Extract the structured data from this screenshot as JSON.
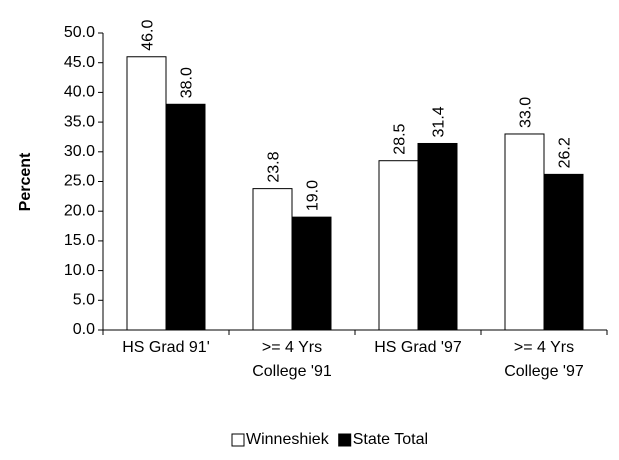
{
  "chart_data": {
    "type": "bar",
    "y_label": "Percent",
    "categories": [
      [
        "HS Grad 91'"
      ],
      [
        ">= 4 Yrs",
        "College '91"
      ],
      [
        "HS Grad '97"
      ],
      [
        ">= 4 Yrs",
        "College '97"
      ]
    ],
    "series": [
      {
        "name": "Winneshiek",
        "color": "#ffffff",
        "values": [
          46.0,
          23.8,
          28.5,
          33.0
        ],
        "value_labels": [
          "46.0",
          "23.8",
          "28.5",
          "33.0"
        ]
      },
      {
        "name": "State Total",
        "color": "#000000",
        "values": [
          38.0,
          19.0,
          31.4,
          26.2
        ],
        "value_labels": [
          "38.0",
          "19.0",
          "31.4",
          "26.2"
        ]
      }
    ],
    "ylim": [
      0,
      50
    ],
    "yticks": [
      {
        "value": 0,
        "label": "0.0"
      },
      {
        "value": 5,
        "label": "5.0"
      },
      {
        "value": 10,
        "label": "10.0"
      },
      {
        "value": 15,
        "label": "15.0"
      },
      {
        "value": 20,
        "label": "20.0"
      },
      {
        "value": 25,
        "label": "25.0"
      },
      {
        "value": 30,
        "label": "30.0"
      },
      {
        "value": 35,
        "label": "35.0"
      },
      {
        "value": 40,
        "label": "40.0"
      },
      {
        "value": 45,
        "label": "45.0"
      },
      {
        "value": 50,
        "label": "50.0"
      }
    ],
    "legend": "bottom"
  }
}
